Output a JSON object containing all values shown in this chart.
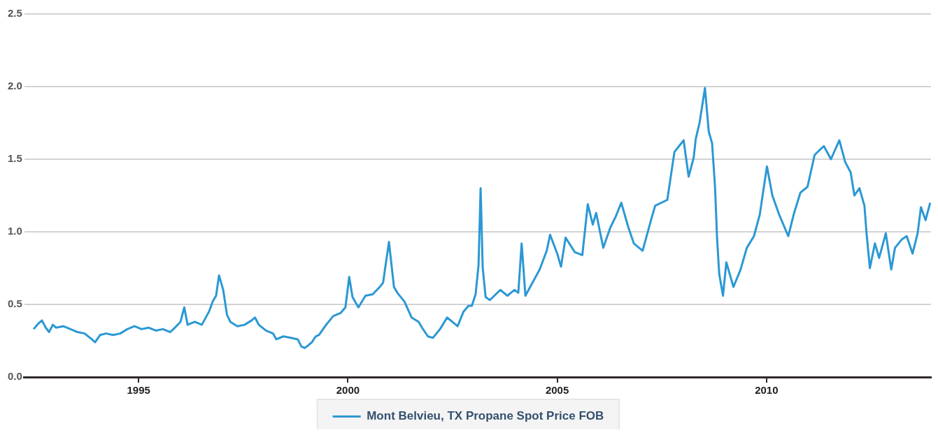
{
  "chart_data": {
    "type": "line",
    "x": [
      1992.49,
      1992.61,
      1992.69,
      1992.78,
      1992.86,
      1992.95,
      1993.03,
      1993.2,
      1993.37,
      1993.54,
      1993.71,
      1993.88,
      1993.96,
      1994.08,
      1994.22,
      1994.39,
      1994.56,
      1994.73,
      1994.9,
      1995.07,
      1995.24,
      1995.41,
      1995.58,
      1995.75,
      1995.83,
      1996.0,
      1996.09,
      1996.17,
      1996.34,
      1996.51,
      1996.68,
      1996.77,
      1996.85,
      1996.92,
      1997.02,
      1997.11,
      1997.19,
      1997.36,
      1997.53,
      1997.7,
      1997.78,
      1997.87,
      1998.04,
      1998.21,
      1998.29,
      1998.46,
      1998.63,
      1998.8,
      1998.89,
      1998.97,
      1999.06,
      1999.14,
      1999.23,
      1999.31,
      1999.48,
      1999.65,
      1999.82,
      1999.94,
      2000.03,
      2000.11,
      2000.25,
      2000.42,
      2000.59,
      2000.76,
      2000.84,
      2000.98,
      2001.1,
      2001.18,
      2001.35,
      2001.52,
      2001.69,
      2001.77,
      2001.91,
      2002.03,
      2002.2,
      2002.37,
      2002.54,
      2002.62,
      2002.76,
      2002.88,
      2002.96,
      2003.05,
      2003.12,
      2003.17,
      2003.22,
      2003.29,
      2003.39,
      2003.64,
      2003.81,
      2003.98,
      2004.07,
      2004.15,
      2004.24,
      2004.41,
      2004.58,
      2004.75,
      2004.83,
      2005.0,
      2005.09,
      2005.2,
      2005.42,
      2005.6,
      2005.73,
      2005.85,
      2005.93,
      2006.1,
      2006.27,
      2006.39,
      2006.53,
      2006.7,
      2006.83,
      2007.04,
      2007.24,
      2007.34,
      2007.63,
      2007.8,
      2008.02,
      2008.14,
      2008.26,
      2008.31,
      2008.4,
      2008.53,
      2008.62,
      2008.7,
      2008.77,
      2008.82,
      2008.87,
      2008.96,
      2009.04,
      2009.21,
      2009.38,
      2009.53,
      2009.7,
      2009.84,
      2010.01,
      2010.14,
      2010.3,
      2010.52,
      2010.65,
      2010.81,
      2010.98,
      2011.15,
      2011.37,
      2011.54,
      2011.74,
      2011.88,
      2012.01,
      2012.1,
      2012.22,
      2012.34,
      2012.39,
      2012.47,
      2012.59,
      2012.69,
      2012.85,
      2012.98,
      2013.07,
      2013.24,
      2013.35,
      2013.49,
      2013.61,
      2013.69,
      2013.8,
      2013.91
    ],
    "series": [
      {
        "name": "Mont Belvieu, TX Propane Spot Price FOB",
        "color": "#2b98d4",
        "values": [
          0.33,
          0.37,
          0.39,
          0.34,
          0.31,
          0.36,
          0.34,
          0.35,
          0.33,
          0.31,
          0.3,
          0.26,
          0.24,
          0.29,
          0.3,
          0.29,
          0.3,
          0.33,
          0.35,
          0.33,
          0.34,
          0.32,
          0.33,
          0.31,
          0.33,
          0.38,
          0.48,
          0.36,
          0.38,
          0.36,
          0.45,
          0.52,
          0.56,
          0.7,
          0.6,
          0.43,
          0.38,
          0.35,
          0.36,
          0.39,
          0.41,
          0.36,
          0.32,
          0.3,
          0.26,
          0.28,
          0.27,
          0.26,
          0.21,
          0.2,
          0.22,
          0.24,
          0.28,
          0.29,
          0.36,
          0.42,
          0.44,
          0.48,
          0.69,
          0.55,
          0.48,
          0.56,
          0.57,
          0.62,
          0.65,
          0.93,
          0.62,
          0.58,
          0.52,
          0.41,
          0.38,
          0.34,
          0.28,
          0.27,
          0.33,
          0.41,
          0.37,
          0.35,
          0.45,
          0.49,
          0.49,
          0.57,
          0.77,
          1.3,
          0.75,
          0.55,
          0.53,
          0.6,
          0.56,
          0.6,
          0.58,
          0.92,
          0.56,
          0.65,
          0.74,
          0.87,
          0.98,
          0.85,
          0.76,
          0.96,
          0.86,
          0.84,
          1.19,
          1.05,
          1.13,
          0.89,
          1.03,
          1.1,
          1.2,
          1.03,
          0.92,
          0.87,
          1.08,
          1.18,
          1.22,
          1.55,
          1.63,
          1.38,
          1.51,
          1.64,
          1.75,
          1.99,
          1.69,
          1.61,
          1.31,
          0.95,
          0.71,
          0.56,
          0.79,
          0.62,
          0.74,
          0.89,
          0.97,
          1.12,
          1.45,
          1.25,
          1.12,
          0.97,
          1.12,
          1.27,
          1.31,
          1.53,
          1.59,
          1.5,
          1.63,
          1.48,
          1.41,
          1.25,
          1.3,
          1.18,
          0.99,
          0.75,
          0.92,
          0.82,
          0.99,
          0.74,
          0.89,
          0.95,
          0.97,
          0.85,
          0.99,
          1.17,
          1.08,
          1.2
        ]
      }
    ],
    "xlim": [
      1992.27,
      2013.93
    ],
    "xticks": [
      1995,
      2000,
      2005,
      2010
    ],
    "ylim": [
      0,
      2.5
    ],
    "yticks": [
      {
        "value": 0,
        "label": "0.0"
      },
      {
        "value": 0.5,
        "label": "0.5"
      },
      {
        "value": 1,
        "label": "1.0"
      },
      {
        "value": 1.5,
        "label": "1.5"
      },
      {
        "value": 2,
        "label": "2.0"
      },
      {
        "value": 2.5,
        "label": "2.5"
      }
    ],
    "grid": "y",
    "legend": "bottom",
    "marker": "none",
    "line_style": "solid"
  }
}
